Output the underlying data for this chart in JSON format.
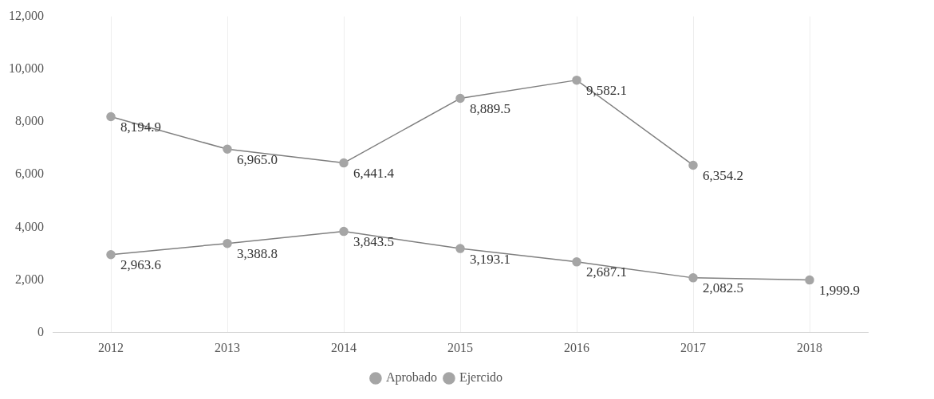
{
  "chart_data": {
    "type": "line",
    "categories": [
      "2012",
      "2013",
      "2014",
      "2015",
      "2016",
      "2017",
      "2018"
    ],
    "series": [
      {
        "name": "Aprobado",
        "color": "#a5a5a5",
        "values": [
          2963.6,
          3388.8,
          3843.5,
          3193.1,
          2687.1,
          2082.5,
          1999.9
        ],
        "value_labels": [
          "2,963.6",
          "3,388.8",
          "3,843.5",
          "3,193.1",
          "2,687.1",
          "2,082.5",
          "1,999.9"
        ]
      },
      {
        "name": "Ejercido",
        "color": "#a5a5a5",
        "values": [
          8194.9,
          6965.0,
          6441.4,
          8889.5,
          9582.1,
          6354.2,
          null
        ],
        "value_labels": [
          "8,194.9",
          "6,965.0",
          "6,441.4",
          "8,889.5",
          "9,582.1",
          "6,354.2",
          null
        ]
      }
    ],
    "ylim": [
      0,
      12000
    ],
    "yticks": [
      0,
      {
        "value": 2000,
        "label": "2,000"
      },
      {
        "value": 4000,
        "label": "4,000"
      },
      {
        "value": 6000,
        "label": "6,000"
      },
      {
        "value": 8000,
        "label": "8,000"
      },
      {
        "value": 10000,
        "label": "10,000"
      },
      {
        "value": 12000,
        "label": "12,000"
      }
    ],
    "grid": "x",
    "legend": "bottom",
    "marker": "circle",
    "line_style": "solid"
  }
}
